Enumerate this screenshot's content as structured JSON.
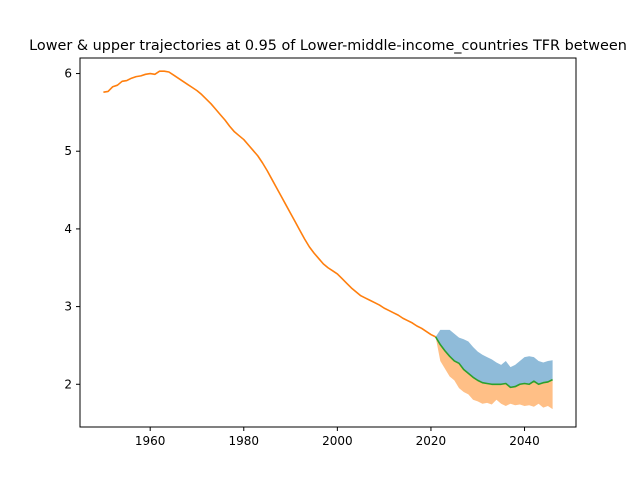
{
  "chart_data": {
    "type": "line",
    "title": "Lower & upper trajectories at 0.95 of Lower-middle-income_countries TFR between",
    "xlabel": "",
    "ylabel": "",
    "xlim": [
      1945,
      2051
    ],
    "ylim": [
      1.45,
      6.2
    ],
    "x_ticks": [
      1960,
      1980,
      2000,
      2020,
      2040
    ],
    "y_ticks": [
      2,
      3,
      4,
      5,
      6
    ],
    "grid": false,
    "legend": "none",
    "colors": {
      "observed": "#ff7f0e",
      "median": "#2ca02c",
      "upper_band": "#1f77b4",
      "lower_band": "#ff7f0e"
    },
    "series": [
      {
        "role": "observed",
        "x": [
          1950,
          1951,
          1952,
          1953,
          1954,
          1955,
          1956,
          1957,
          1958,
          1959,
          1960,
          1961,
          1962,
          1963,
          1964,
          1965,
          1966,
          1967,
          1968,
          1969,
          1970,
          1971,
          1972,
          1973,
          1974,
          1975,
          1976,
          1977,
          1978,
          1979,
          1980,
          1981,
          1982,
          1983,
          1984,
          1985,
          1986,
          1987,
          1988,
          1989,
          1990,
          1991,
          1992,
          1993,
          1994,
          1995,
          1996,
          1997,
          1998,
          1999,
          2000,
          2001,
          2002,
          2003,
          2004,
          2005,
          2006,
          2007,
          2008,
          2009,
          2010,
          2011,
          2012,
          2013,
          2014,
          2015,
          2016,
          2017,
          2018,
          2019,
          2020,
          2021
        ],
        "y": [
          5.76,
          5.77,
          5.83,
          5.85,
          5.9,
          5.91,
          5.94,
          5.96,
          5.97,
          5.99,
          6.0,
          5.99,
          6.03,
          6.03,
          6.02,
          5.98,
          5.94,
          5.9,
          5.86,
          5.82,
          5.78,
          5.73,
          5.67,
          5.61,
          5.54,
          5.47,
          5.4,
          5.32,
          5.25,
          5.2,
          5.15,
          5.08,
          5.01,
          4.94,
          4.85,
          4.75,
          4.64,
          4.53,
          4.42,
          4.31,
          4.2,
          4.09,
          3.98,
          3.87,
          3.77,
          3.69,
          3.62,
          3.55,
          3.5,
          3.46,
          3.42,
          3.36,
          3.3,
          3.24,
          3.19,
          3.14,
          3.11,
          3.08,
          3.05,
          3.02,
          2.98,
          2.95,
          2.92,
          2.89,
          2.85,
          2.82,
          2.79,
          2.75,
          2.72,
          2.68,
          2.64,
          2.61
        ]
      },
      {
        "role": "median",
        "x": [
          2021,
          2022,
          2023,
          2024,
          2025,
          2026,
          2027,
          2028,
          2029,
          2030,
          2031,
          2032,
          2033,
          2034,
          2035,
          2036,
          2037,
          2038,
          2039,
          2040,
          2041,
          2042,
          2043,
          2044,
          2045,
          2046
        ],
        "y": [
          2.61,
          2.51,
          2.43,
          2.36,
          2.3,
          2.27,
          2.19,
          2.14,
          2.09,
          2.05,
          2.02,
          2.01,
          2.0,
          2.0,
          2.0,
          2.01,
          1.96,
          1.97,
          2.0,
          2.01,
          2.0,
          2.04,
          2.0,
          2.02,
          2.03,
          2.06
        ]
      }
    ],
    "band": {
      "x": [
        2021,
        2022,
        2023,
        2024,
        2025,
        2026,
        2027,
        2028,
        2029,
        2030,
        2031,
        2032,
        2033,
        2034,
        2035,
        2036,
        2037,
        2038,
        2039,
        2040,
        2041,
        2042,
        2043,
        2044,
        2045,
        2046
      ],
      "upper": [
        2.61,
        2.7,
        2.7,
        2.7,
        2.65,
        2.6,
        2.58,
        2.55,
        2.48,
        2.42,
        2.38,
        2.35,
        2.32,
        2.28,
        2.25,
        2.3,
        2.22,
        2.25,
        2.3,
        2.35,
        2.36,
        2.35,
        2.3,
        2.28,
        2.3,
        2.31
      ],
      "lower": [
        2.61,
        2.3,
        2.2,
        2.1,
        2.05,
        1.95,
        1.9,
        1.87,
        1.8,
        1.78,
        1.75,
        1.76,
        1.74,
        1.8,
        1.75,
        1.72,
        1.75,
        1.73,
        1.74,
        1.72,
        1.73,
        1.71,
        1.75,
        1.7,
        1.72,
        1.68
      ]
    }
  }
}
